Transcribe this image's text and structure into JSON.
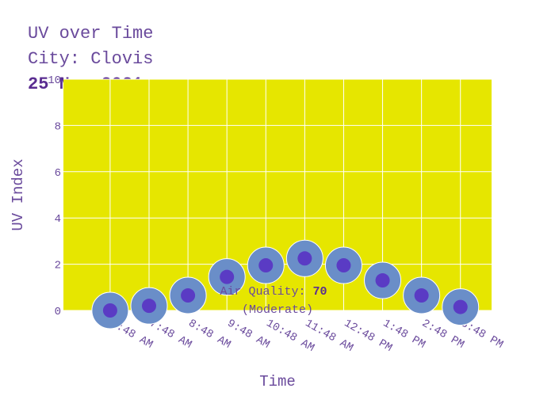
{
  "chart_data": {
    "type": "scatter",
    "title_lines": [
      "UV over Time",
      "City: Clovis",
      "25 Nov 2021"
    ],
    "xlabel": "Time",
    "ylabel": "UV Index",
    "ylim": [
      0,
      10
    ],
    "yticks": [
      0,
      2,
      4,
      6,
      8,
      10
    ],
    "x": [
      "6:48 AM",
      "7:48 AM",
      "8:48 AM",
      "9:48 AM",
      "10:48 AM",
      "11:48 AM",
      "12:48 PM",
      "1:48 PM",
      "2:48 PM",
      "3:48 PM"
    ],
    "values": [
      0.0,
      0.2,
      0.65,
      1.45,
      1.95,
      2.25,
      1.95,
      1.3,
      0.65,
      0.15
    ],
    "grid": true,
    "plot_background": "#e6e600",
    "marker_outer_color": "#6a8ec8",
    "marker_inner_color": "#5a3bc4",
    "annotation": {
      "prefix": "Air Quality: ",
      "value": "70",
      "suffix": "(Moderate)"
    }
  }
}
